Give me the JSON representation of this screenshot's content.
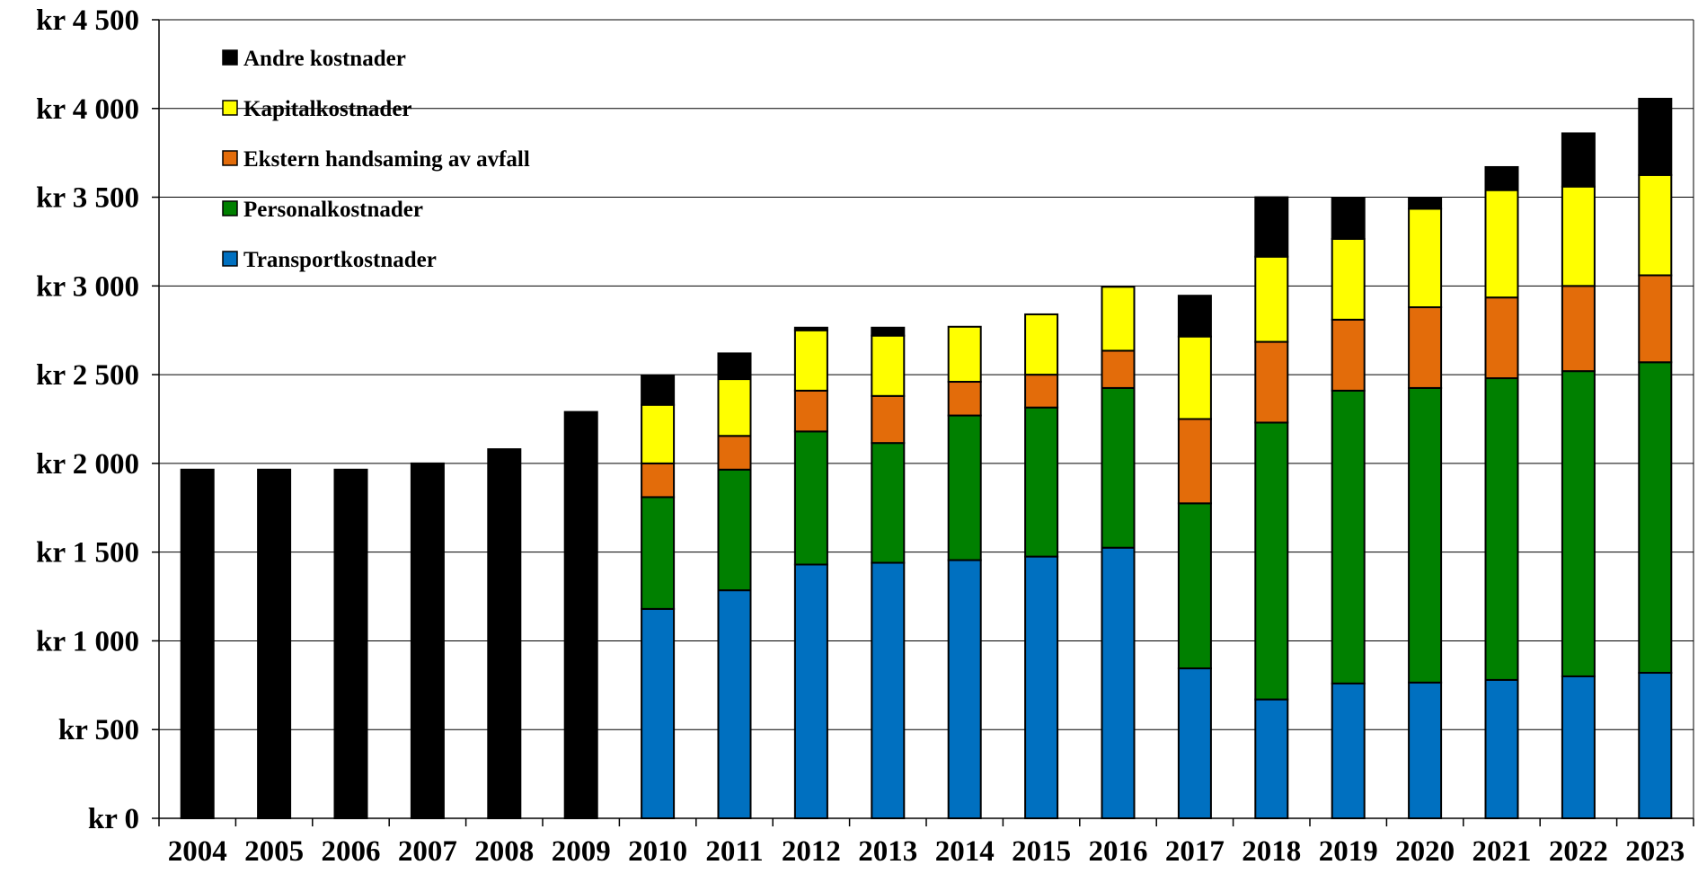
{
  "chart_data": {
    "type": "bar",
    "stacked": true,
    "categories": [
      "2004",
      "2005",
      "2006",
      "2007",
      "2008",
      "2009",
      "2010",
      "2011",
      "2012",
      "2013",
      "2014",
      "2015",
      "2016",
      "2017",
      "2018",
      "2019",
      "2020",
      "2021",
      "2022",
      "2023"
    ],
    "ylim": [
      0,
      4500
    ],
    "ytick_values": [
      0,
      500,
      1000,
      1500,
      2000,
      2500,
      3000,
      3500,
      4000,
      4500
    ],
    "ytick_labels": [
      "kr 0",
      "kr 500",
      "kr 1 000",
      "kr 1 500",
      "kr 2 000",
      "kr 2 500",
      "kr 3 000",
      "kr 3 500",
      "kr 4 000",
      "kr 4 500"
    ],
    "grid": true,
    "legend_position": "top-left",
    "series": [
      {
        "name": "Transportkostnader",
        "color": "#0070c0",
        "values": [
          0,
          0,
          0,
          0,
          0,
          0,
          1180,
          1285,
          1430,
          1440,
          1455,
          1475,
          1525,
          845,
          670,
          760,
          765,
          780,
          800,
          820
        ]
      },
      {
        "name": "Personalkostnader",
        "color": "#008000",
        "values": [
          0,
          0,
          0,
          0,
          0,
          0,
          630,
          680,
          750,
          675,
          815,
          840,
          900,
          930,
          1560,
          1650,
          1660,
          1700,
          1720,
          1750
        ]
      },
      {
        "name": "Ekstern handsaming av avfall",
        "color": "#e36c0a",
        "values": [
          0,
          0,
          0,
          0,
          0,
          0,
          190,
          190,
          230,
          265,
          190,
          185,
          210,
          475,
          455,
          400,
          455,
          455,
          480,
          490
        ]
      },
      {
        "name": "Kapitalkostnader",
        "color": "#ffff00",
        "values": [
          0,
          0,
          0,
          0,
          0,
          0,
          330,
          320,
          340,
          340,
          310,
          340,
          360,
          465,
          480,
          455,
          555,
          605,
          560,
          565
        ]
      },
      {
        "name": "Andre kostnader",
        "color": "#000000",
        "values": [
          1965,
          1965,
          1965,
          2000,
          2080,
          2290,
          165,
          145,
          15,
          45,
          0,
          0,
          0,
          230,
          335,
          230,
          60,
          130,
          300,
          430
        ]
      }
    ]
  }
}
